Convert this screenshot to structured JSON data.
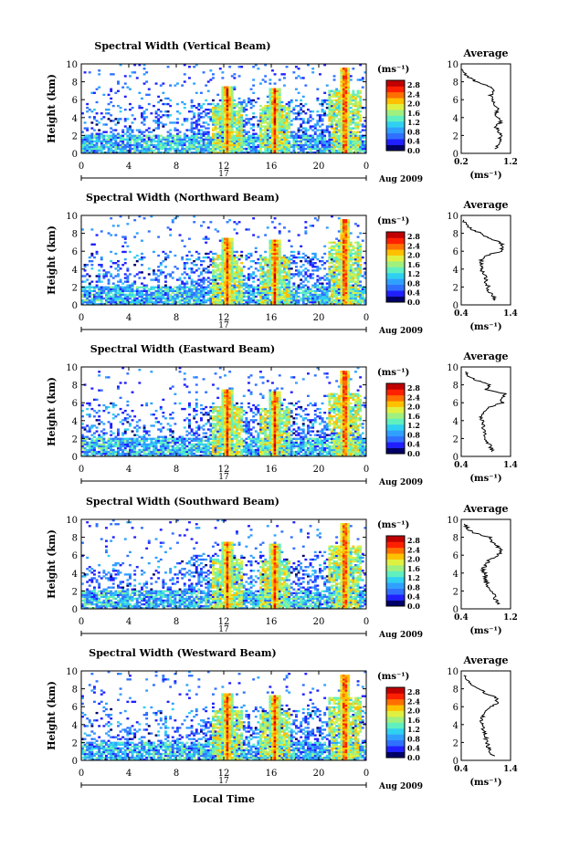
{
  "figure": {
    "xlabel": "Local Time",
    "date_label": "Aug 2009",
    "day_label": "17",
    "x_ticks": [
      "0",
      "4",
      "8",
      "12",
      "16",
      "20",
      "0"
    ],
    "ylabel": "Height (km)",
    "y_ticks": [
      "0",
      "2",
      "4",
      "6",
      "8",
      "10"
    ],
    "colorbar_unit": "(ms⁻¹)",
    "colorbar_ticks": [
      "0.0",
      "0.4",
      "0.8",
      "1.2",
      "1.6",
      "2.0",
      "2.4",
      "2.8"
    ],
    "avg_title": "Average",
    "avg_unit": "(ms⁻¹)",
    "colormap": [
      "#000066",
      "#2020ff",
      "#3070ff",
      "#30a0ff",
      "#30d0f0",
      "#60f0c0",
      "#a0f080",
      "#e0f040",
      "#ffc000",
      "#ff7000",
      "#ff2000",
      "#c00000"
    ]
  },
  "chart_data": [
    {
      "type": "heatmap",
      "title": "Spectral Width (Vertical Beam)",
      "xlabel": "Local Time",
      "ylabel": "Height (km)",
      "xlim": [
        0,
        24
      ],
      "ylim": [
        0,
        10
      ],
      "clim": [
        0,
        3.0
      ],
      "features": {
        "boundary_layer_top_km": 2.0,
        "convective_columns": [
          {
            "time_h": 12.3,
            "top_km": 7.5,
            "peak_width": 2.9
          },
          {
            "time_h": 16.3,
            "top_km": 7.2,
            "peak_width": 2.9
          },
          {
            "time_h": 22.2,
            "top_km": 9.5,
            "peak_width": 3.0
          }
        ]
      },
      "profile": {
        "title": "Average",
        "xlabel": "(ms⁻¹)",
        "xlim": [
          0.2,
          1.2
        ],
        "x_ticks": [
          "0.2",
          "1.2"
        ],
        "heights_km": [
          0.5,
          1,
          1.5,
          2,
          2.5,
          3,
          3.5,
          4,
          4.5,
          5,
          5.5,
          6,
          6.5,
          7,
          7.5,
          8,
          8.5,
          9,
          9.5
        ],
        "values": [
          0.92,
          0.95,
          0.98,
          1.0,
          0.95,
          0.9,
          1.0,
          0.95,
          0.9,
          0.95,
          0.88,
          0.82,
          0.8,
          0.88,
          0.75,
          0.5,
          0.35,
          0.25,
          0.2
        ]
      }
    },
    {
      "type": "heatmap",
      "title": "Spectral Width (Northward Beam)",
      "xlabel": "Local Time",
      "ylabel": "Height (km)",
      "xlim": [
        0,
        24
      ],
      "ylim": [
        0,
        10
      ],
      "clim": [
        0,
        3.0
      ],
      "features": {
        "boundary_layer_top_km": 2.0,
        "convective_columns": [
          {
            "time_h": 12.3,
            "top_km": 7.5,
            "peak_width": 2.9
          },
          {
            "time_h": 16.3,
            "top_km": 7.2,
            "peak_width": 2.9
          },
          {
            "time_h": 22.2,
            "top_km": 9.5,
            "peak_width": 3.0
          }
        ]
      },
      "profile": {
        "title": "Average",
        "xlabel": "(ms⁻¹)",
        "xlim": [
          0.4,
          1.4
        ],
        "x_ticks": [
          "0.4",
          "1.4"
        ],
        "heights_km": [
          0.5,
          1,
          1.5,
          2,
          2.5,
          3,
          3.5,
          4,
          4.5,
          5,
          5.5,
          6,
          6.5,
          7,
          7.5,
          8,
          8.5,
          9,
          9.5
        ],
        "values": [
          1.1,
          1.05,
          0.95,
          0.95,
          0.9,
          0.9,
          0.85,
          0.8,
          0.82,
          0.8,
          0.9,
          1.2,
          1.25,
          1.2,
          0.95,
          0.8,
          0.6,
          0.5,
          0.45
        ]
      }
    },
    {
      "type": "heatmap",
      "title": "Spectral Width (Eastward Beam)",
      "xlabel": "Local Time",
      "ylabel": "Height (km)",
      "xlim": [
        0,
        24
      ],
      "ylim": [
        0,
        10
      ],
      "clim": [
        0,
        3.0
      ],
      "features": {
        "boundary_layer_top_km": 2.0,
        "convective_columns": [
          {
            "time_h": 12.3,
            "top_km": 7.5,
            "peak_width": 2.9
          },
          {
            "time_h": 16.3,
            "top_km": 7.2,
            "peak_width": 2.9
          },
          {
            "time_h": 22.2,
            "top_km": 9.5,
            "peak_width": 3.0
          }
        ]
      },
      "profile": {
        "title": "Average",
        "xlabel": "(ms⁻¹)",
        "xlim": [
          0.4,
          1.4
        ],
        "x_ticks": [
          "0.4",
          "1.4"
        ],
        "heights_km": [
          0.5,
          1,
          1.5,
          2,
          2.5,
          3,
          3.5,
          4,
          4.5,
          5,
          5.5,
          6,
          6.5,
          7,
          7.5,
          8,
          8.5,
          9,
          9.5
        ],
        "values": [
          1.05,
          1.0,
          0.95,
          0.9,
          0.88,
          0.85,
          0.85,
          0.82,
          0.8,
          0.85,
          0.95,
          1.25,
          1.2,
          1.3,
          0.9,
          1.0,
          0.7,
          0.55,
          0.5
        ]
      }
    },
    {
      "type": "heatmap",
      "title": "Spectral Width (Southward Beam)",
      "xlabel": "Local Time",
      "ylabel": "Height (km)",
      "xlim": [
        0,
        24
      ],
      "ylim": [
        0,
        10
      ],
      "clim": [
        0,
        3.0
      ],
      "features": {
        "boundary_layer_top_km": 2.0,
        "convective_columns": [
          {
            "time_h": 12.3,
            "top_km": 7.5,
            "peak_width": 2.9
          },
          {
            "time_h": 16.3,
            "top_km": 7.2,
            "peak_width": 2.9
          },
          {
            "time_h": 22.2,
            "top_km": 9.5,
            "peak_width": 3.0
          }
        ]
      },
      "profile": {
        "title": "Average",
        "xlabel": "(ms⁻¹)",
        "xlim": [
          0.4,
          1.2
        ],
        "x_ticks": [
          "0.4",
          "1.2"
        ],
        "heights_km": [
          0.5,
          1,
          1.5,
          2,
          2.5,
          3,
          3.5,
          4,
          4.5,
          5,
          5.5,
          6,
          6.5,
          7,
          7.5,
          8,
          8.5,
          9,
          9.5
        ],
        "values": [
          1.0,
          0.95,
          0.92,
          0.9,
          0.85,
          0.8,
          0.8,
          0.78,
          0.75,
          0.8,
          0.85,
          1.0,
          1.05,
          1.0,
          0.9,
          0.85,
          0.6,
          0.5,
          0.45
        ]
      }
    },
    {
      "type": "heatmap",
      "title": "Spectral Width (Westward Beam)",
      "xlabel": "Local Time",
      "ylabel": "Height (km)",
      "xlim": [
        0,
        24
      ],
      "ylim": [
        0,
        10
      ],
      "clim": [
        0,
        3.0
      ],
      "features": {
        "boundary_layer_top_km": 2.0,
        "convective_columns": [
          {
            "time_h": 12.3,
            "top_km": 7.5,
            "peak_width": 2.9
          },
          {
            "time_h": 16.3,
            "top_km": 7.2,
            "peak_width": 2.9
          },
          {
            "time_h": 22.2,
            "top_km": 9.5,
            "peak_width": 3.0
          }
        ]
      },
      "profile": {
        "title": "Average",
        "xlabel": "(ms⁻¹)",
        "xlim": [
          0.4,
          1.4
        ],
        "x_ticks": [
          "0.4",
          "1.4"
        ],
        "heights_km": [
          0.5,
          1,
          1.5,
          2,
          2.5,
          3,
          3.5,
          4,
          4.5,
          5,
          5.5,
          6,
          6.5,
          7,
          7.5,
          8,
          8.5,
          9,
          9.5
        ],
        "values": [
          1.05,
          1.0,
          0.95,
          0.92,
          0.9,
          0.88,
          0.85,
          0.85,
          0.8,
          0.85,
          0.9,
          1.0,
          1.15,
          1.1,
          0.9,
          0.75,
          0.6,
          0.5,
          0.45
        ]
      }
    }
  ]
}
